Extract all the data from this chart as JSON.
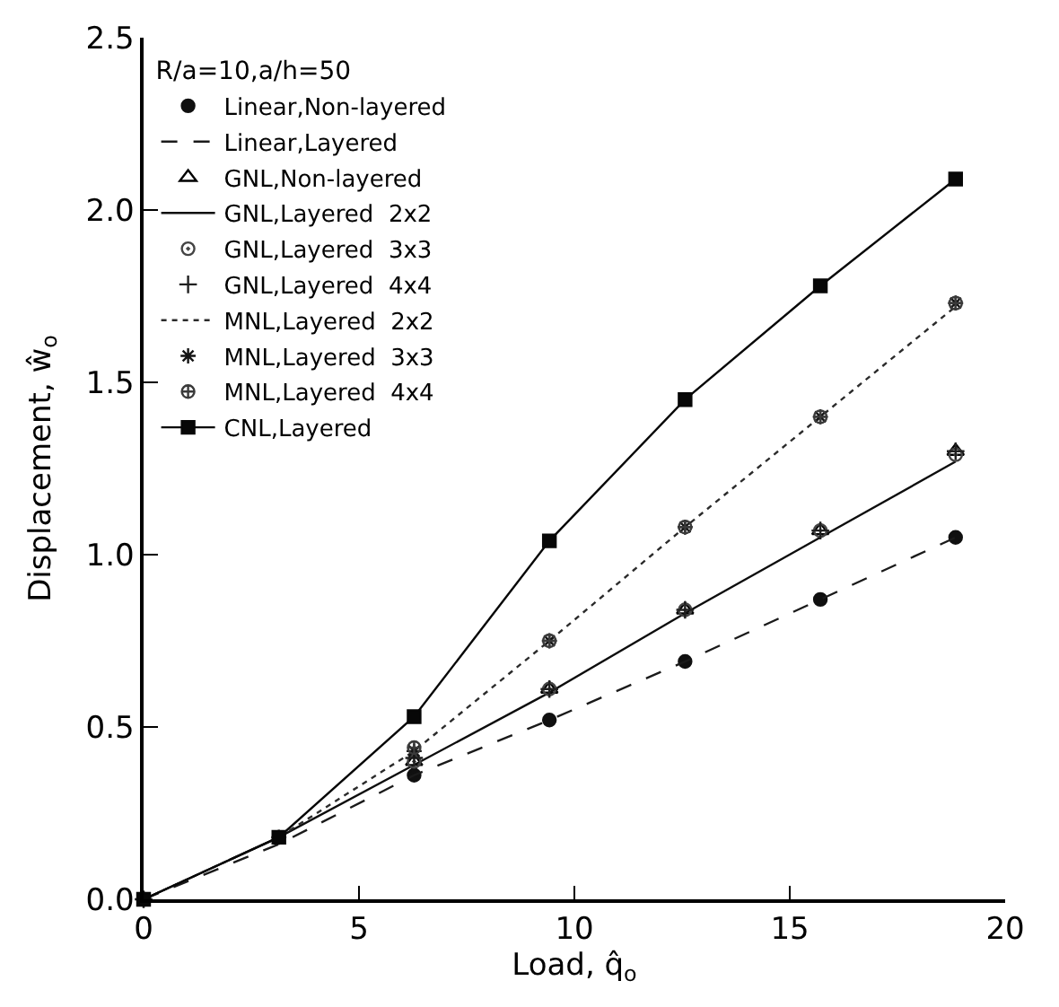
{
  "chart_data": {
    "type": "line",
    "xlabel": "Load, q̂$_{o}$",
    "ylabel": "Displacement, ŵ$_{o}$",
    "legend_title": "R/a=10,a/h=50",
    "x": [
      0,
      3.14,
      6.28,
      9.42,
      12.57,
      15.71,
      18.85
    ],
    "series": [
      {
        "name": "Linear,Non-layered",
        "type": "scatter",
        "color": "#101010",
        "marker": "circle",
        "values": [
          null,
          null,
          0.36,
          0.52,
          0.69,
          0.87,
          1.05
        ]
      },
      {
        "name": "Linear,Layered",
        "color": "#1a1a1a",
        "marker": "none",
        "line_style": "dashed",
        "values": [
          0,
          0.16,
          0.36,
          0.52,
          0.69,
          0.87,
          1.05
        ]
      },
      {
        "name": "GNL,Non-layered",
        "type": "scatter",
        "color": "#000000",
        "marker": "triangle",
        "values": [
          null,
          null,
          0.4,
          0.61,
          0.84,
          1.07,
          1.3
        ]
      },
      {
        "name": "GNL,Layered  2x2",
        "color": "#0d0d0d",
        "marker": "none",
        "line_style": "solid",
        "values": [
          0,
          0.18,
          0.39,
          0.6,
          0.83,
          1.05,
          1.27
        ]
      },
      {
        "name": "GNL,Layered  3x3",
        "type": "scatter",
        "color": "#444444",
        "marker": "circle",
        "values": [
          null,
          null,
          0.4,
          0.61,
          0.84,
          1.07,
          1.29
        ]
      },
      {
        "name": "GNL,Layered  4x4",
        "type": "scatter",
        "color": "#202020",
        "marker": "cross",
        "values": [
          0,
          null,
          0.41,
          0.61,
          0.84,
          1.07,
          1.3
        ]
      },
      {
        "name": "MNL,Layered  2x2",
        "color": "#2b2b2b",
        "marker": "none",
        "line_style": "dotted",
        "values": [
          0,
          0.18,
          0.43,
          0.75,
          1.08,
          1.4,
          1.72
        ]
      },
      {
        "name": "MNL,Layered  3x3",
        "type": "scatter",
        "color": "#141414",
        "marker": "cross",
        "values": [
          0,
          0.18,
          0.43,
          0.75,
          1.08,
          1.4,
          1.73
        ]
      },
      {
        "name": "MNL,Layered  4x4",
        "type": "scatter",
        "color": "#3a3a3a",
        "marker": "cross",
        "values": [
          null,
          null,
          0.44,
          0.75,
          1.08,
          1.4,
          1.73
        ]
      },
      {
        "name": "CNL,Layered",
        "color": "#070707",
        "marker": "square",
        "line_style": "solid",
        "values": [
          0,
          0.18,
          0.53,
          1.04,
          1.45,
          1.78,
          2.09
        ]
      }
    ],
    "xlim": [
      0,
      20
    ],
    "xticks": [
      0,
      5,
      10,
      15,
      20
    ],
    "ylim": [
      0,
      2.5
    ],
    "yticks": [
      {
        "value": 0,
        "label": "0.0"
      },
      0.5,
      {
        "value": 1,
        "label": "1.0"
      },
      1.5,
      {
        "value": 2,
        "label": "2.0"
      },
      2.5
    ],
    "legend": "top left"
  }
}
